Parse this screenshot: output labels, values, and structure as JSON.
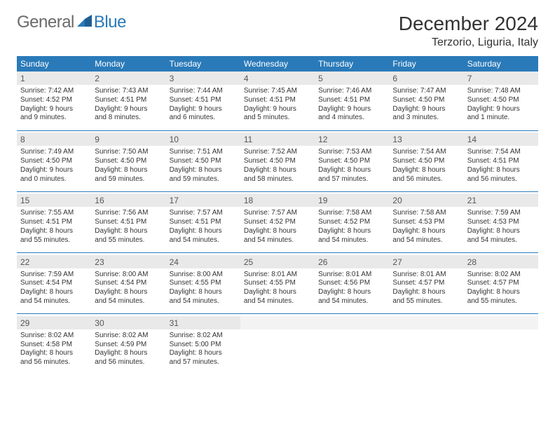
{
  "brand": {
    "word1": "General",
    "word2": "Blue"
  },
  "title": {
    "month": "December 2024",
    "location": "Terzorio, Liguria, Italy"
  },
  "colors": {
    "header_bg": "#2a7ab9",
    "header_text": "#ffffff",
    "daynum_bg": "#e9e9e9",
    "rule": "#2a7ab9",
    "brand_gray": "#6a6a6a",
    "brand_blue": "#2a7ab9"
  },
  "dow": [
    "Sunday",
    "Monday",
    "Tuesday",
    "Wednesday",
    "Thursday",
    "Friday",
    "Saturday"
  ],
  "weeks": [
    [
      {
        "num": "1",
        "sunrise": "Sunrise: 7:42 AM",
        "sunset": "Sunset: 4:52 PM",
        "day1": "Daylight: 9 hours",
        "day2": "and 9 minutes."
      },
      {
        "num": "2",
        "sunrise": "Sunrise: 7:43 AM",
        "sunset": "Sunset: 4:51 PM",
        "day1": "Daylight: 9 hours",
        "day2": "and 8 minutes."
      },
      {
        "num": "3",
        "sunrise": "Sunrise: 7:44 AM",
        "sunset": "Sunset: 4:51 PM",
        "day1": "Daylight: 9 hours",
        "day2": "and 6 minutes."
      },
      {
        "num": "4",
        "sunrise": "Sunrise: 7:45 AM",
        "sunset": "Sunset: 4:51 PM",
        "day1": "Daylight: 9 hours",
        "day2": "and 5 minutes."
      },
      {
        "num": "5",
        "sunrise": "Sunrise: 7:46 AM",
        "sunset": "Sunset: 4:51 PM",
        "day1": "Daylight: 9 hours",
        "day2": "and 4 minutes."
      },
      {
        "num": "6",
        "sunrise": "Sunrise: 7:47 AM",
        "sunset": "Sunset: 4:50 PM",
        "day1": "Daylight: 9 hours",
        "day2": "and 3 minutes."
      },
      {
        "num": "7",
        "sunrise": "Sunrise: 7:48 AM",
        "sunset": "Sunset: 4:50 PM",
        "day1": "Daylight: 9 hours",
        "day2": "and 1 minute."
      }
    ],
    [
      {
        "num": "8",
        "sunrise": "Sunrise: 7:49 AM",
        "sunset": "Sunset: 4:50 PM",
        "day1": "Daylight: 9 hours",
        "day2": "and 0 minutes."
      },
      {
        "num": "9",
        "sunrise": "Sunrise: 7:50 AM",
        "sunset": "Sunset: 4:50 PM",
        "day1": "Daylight: 8 hours",
        "day2": "and 59 minutes."
      },
      {
        "num": "10",
        "sunrise": "Sunrise: 7:51 AM",
        "sunset": "Sunset: 4:50 PM",
        "day1": "Daylight: 8 hours",
        "day2": "and 59 minutes."
      },
      {
        "num": "11",
        "sunrise": "Sunrise: 7:52 AM",
        "sunset": "Sunset: 4:50 PM",
        "day1": "Daylight: 8 hours",
        "day2": "and 58 minutes."
      },
      {
        "num": "12",
        "sunrise": "Sunrise: 7:53 AM",
        "sunset": "Sunset: 4:50 PM",
        "day1": "Daylight: 8 hours",
        "day2": "and 57 minutes."
      },
      {
        "num": "13",
        "sunrise": "Sunrise: 7:54 AM",
        "sunset": "Sunset: 4:50 PM",
        "day1": "Daylight: 8 hours",
        "day2": "and 56 minutes."
      },
      {
        "num": "14",
        "sunrise": "Sunrise: 7:54 AM",
        "sunset": "Sunset: 4:51 PM",
        "day1": "Daylight: 8 hours",
        "day2": "and 56 minutes."
      }
    ],
    [
      {
        "num": "15",
        "sunrise": "Sunrise: 7:55 AM",
        "sunset": "Sunset: 4:51 PM",
        "day1": "Daylight: 8 hours",
        "day2": "and 55 minutes."
      },
      {
        "num": "16",
        "sunrise": "Sunrise: 7:56 AM",
        "sunset": "Sunset: 4:51 PM",
        "day1": "Daylight: 8 hours",
        "day2": "and 55 minutes."
      },
      {
        "num": "17",
        "sunrise": "Sunrise: 7:57 AM",
        "sunset": "Sunset: 4:51 PM",
        "day1": "Daylight: 8 hours",
        "day2": "and 54 minutes."
      },
      {
        "num": "18",
        "sunrise": "Sunrise: 7:57 AM",
        "sunset": "Sunset: 4:52 PM",
        "day1": "Daylight: 8 hours",
        "day2": "and 54 minutes."
      },
      {
        "num": "19",
        "sunrise": "Sunrise: 7:58 AM",
        "sunset": "Sunset: 4:52 PM",
        "day1": "Daylight: 8 hours",
        "day2": "and 54 minutes."
      },
      {
        "num": "20",
        "sunrise": "Sunrise: 7:58 AM",
        "sunset": "Sunset: 4:53 PM",
        "day1": "Daylight: 8 hours",
        "day2": "and 54 minutes."
      },
      {
        "num": "21",
        "sunrise": "Sunrise: 7:59 AM",
        "sunset": "Sunset: 4:53 PM",
        "day1": "Daylight: 8 hours",
        "day2": "and 54 minutes."
      }
    ],
    [
      {
        "num": "22",
        "sunrise": "Sunrise: 7:59 AM",
        "sunset": "Sunset: 4:54 PM",
        "day1": "Daylight: 8 hours",
        "day2": "and 54 minutes."
      },
      {
        "num": "23",
        "sunrise": "Sunrise: 8:00 AM",
        "sunset": "Sunset: 4:54 PM",
        "day1": "Daylight: 8 hours",
        "day2": "and 54 minutes."
      },
      {
        "num": "24",
        "sunrise": "Sunrise: 8:00 AM",
        "sunset": "Sunset: 4:55 PM",
        "day1": "Daylight: 8 hours",
        "day2": "and 54 minutes."
      },
      {
        "num": "25",
        "sunrise": "Sunrise: 8:01 AM",
        "sunset": "Sunset: 4:55 PM",
        "day1": "Daylight: 8 hours",
        "day2": "and 54 minutes."
      },
      {
        "num": "26",
        "sunrise": "Sunrise: 8:01 AM",
        "sunset": "Sunset: 4:56 PM",
        "day1": "Daylight: 8 hours",
        "day2": "and 54 minutes."
      },
      {
        "num": "27",
        "sunrise": "Sunrise: 8:01 AM",
        "sunset": "Sunset: 4:57 PM",
        "day1": "Daylight: 8 hours",
        "day2": "and 55 minutes."
      },
      {
        "num": "28",
        "sunrise": "Sunrise: 8:02 AM",
        "sunset": "Sunset: 4:57 PM",
        "day1": "Daylight: 8 hours",
        "day2": "and 55 minutes."
      }
    ],
    [
      {
        "num": "29",
        "sunrise": "Sunrise: 8:02 AM",
        "sunset": "Sunset: 4:58 PM",
        "day1": "Daylight: 8 hours",
        "day2": "and 56 minutes."
      },
      {
        "num": "30",
        "sunrise": "Sunrise: 8:02 AM",
        "sunset": "Sunset: 4:59 PM",
        "day1": "Daylight: 8 hours",
        "day2": "and 56 minutes."
      },
      {
        "num": "31",
        "sunrise": "Sunrise: 8:02 AM",
        "sunset": "Sunset: 5:00 PM",
        "day1": "Daylight: 8 hours",
        "day2": "and 57 minutes."
      },
      {
        "empty": true
      },
      {
        "empty": true
      },
      {
        "empty": true
      },
      {
        "empty": true
      }
    ]
  ]
}
